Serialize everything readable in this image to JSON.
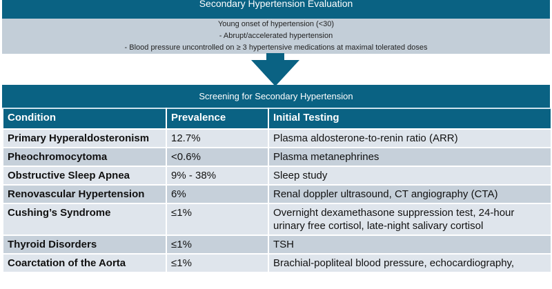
{
  "banner": {
    "title": "Secondary Hypertension Evaluation"
  },
  "criteria": [
    "Young onset of hypertension (<30)",
    "- Abrupt/accelerated hypertension",
    "- Blood pressure uncontrolled on ≥ 3 hypertensive medications at maximal tolerated doses"
  ],
  "arrow": {
    "icon": "arrow-down-icon",
    "color": "#0a6283"
  },
  "screening": {
    "title": "Screening for Secondary Hypertension",
    "headers": [
      "Condition",
      "Prevalence",
      "Initial Testing"
    ],
    "rows": [
      {
        "condition": "Primary Hyperaldosteronism",
        "prevalence": "12.7%",
        "testing": "Plasma aldosterone-to-renin ratio (ARR)"
      },
      {
        "condition": "Pheochromocytoma",
        "prevalence": "<0.6%",
        "testing": "Plasma metanephrines"
      },
      {
        "condition": "Obstructive Sleep Apnea",
        "prevalence": "9% - 38%",
        "testing": "Sleep study"
      },
      {
        "condition": "Renovascular Hypertension",
        "prevalence": "6%",
        "testing": "Renal doppler ultrasound, CT angiography (CTA)"
      },
      {
        "condition": "Cushing’s Syndrome",
        "prevalence": "≤1%",
        "testing": "Overnight dexamethasone suppression test, 24-hour urinary free cortisol, late-night salivary cortisol"
      },
      {
        "condition": "Thyroid Disorders",
        "prevalence": "≤1%",
        "testing": "TSH"
      },
      {
        "condition": "Coarctation of the Aorta",
        "prevalence": "≤1%",
        "testing": "Brachial-popliteal blood pressure, echocardiography,"
      }
    ]
  },
  "colors": {
    "primary": "#0a6283",
    "row_light": "#dfe5ec",
    "row_dark": "#c6d0da"
  }
}
